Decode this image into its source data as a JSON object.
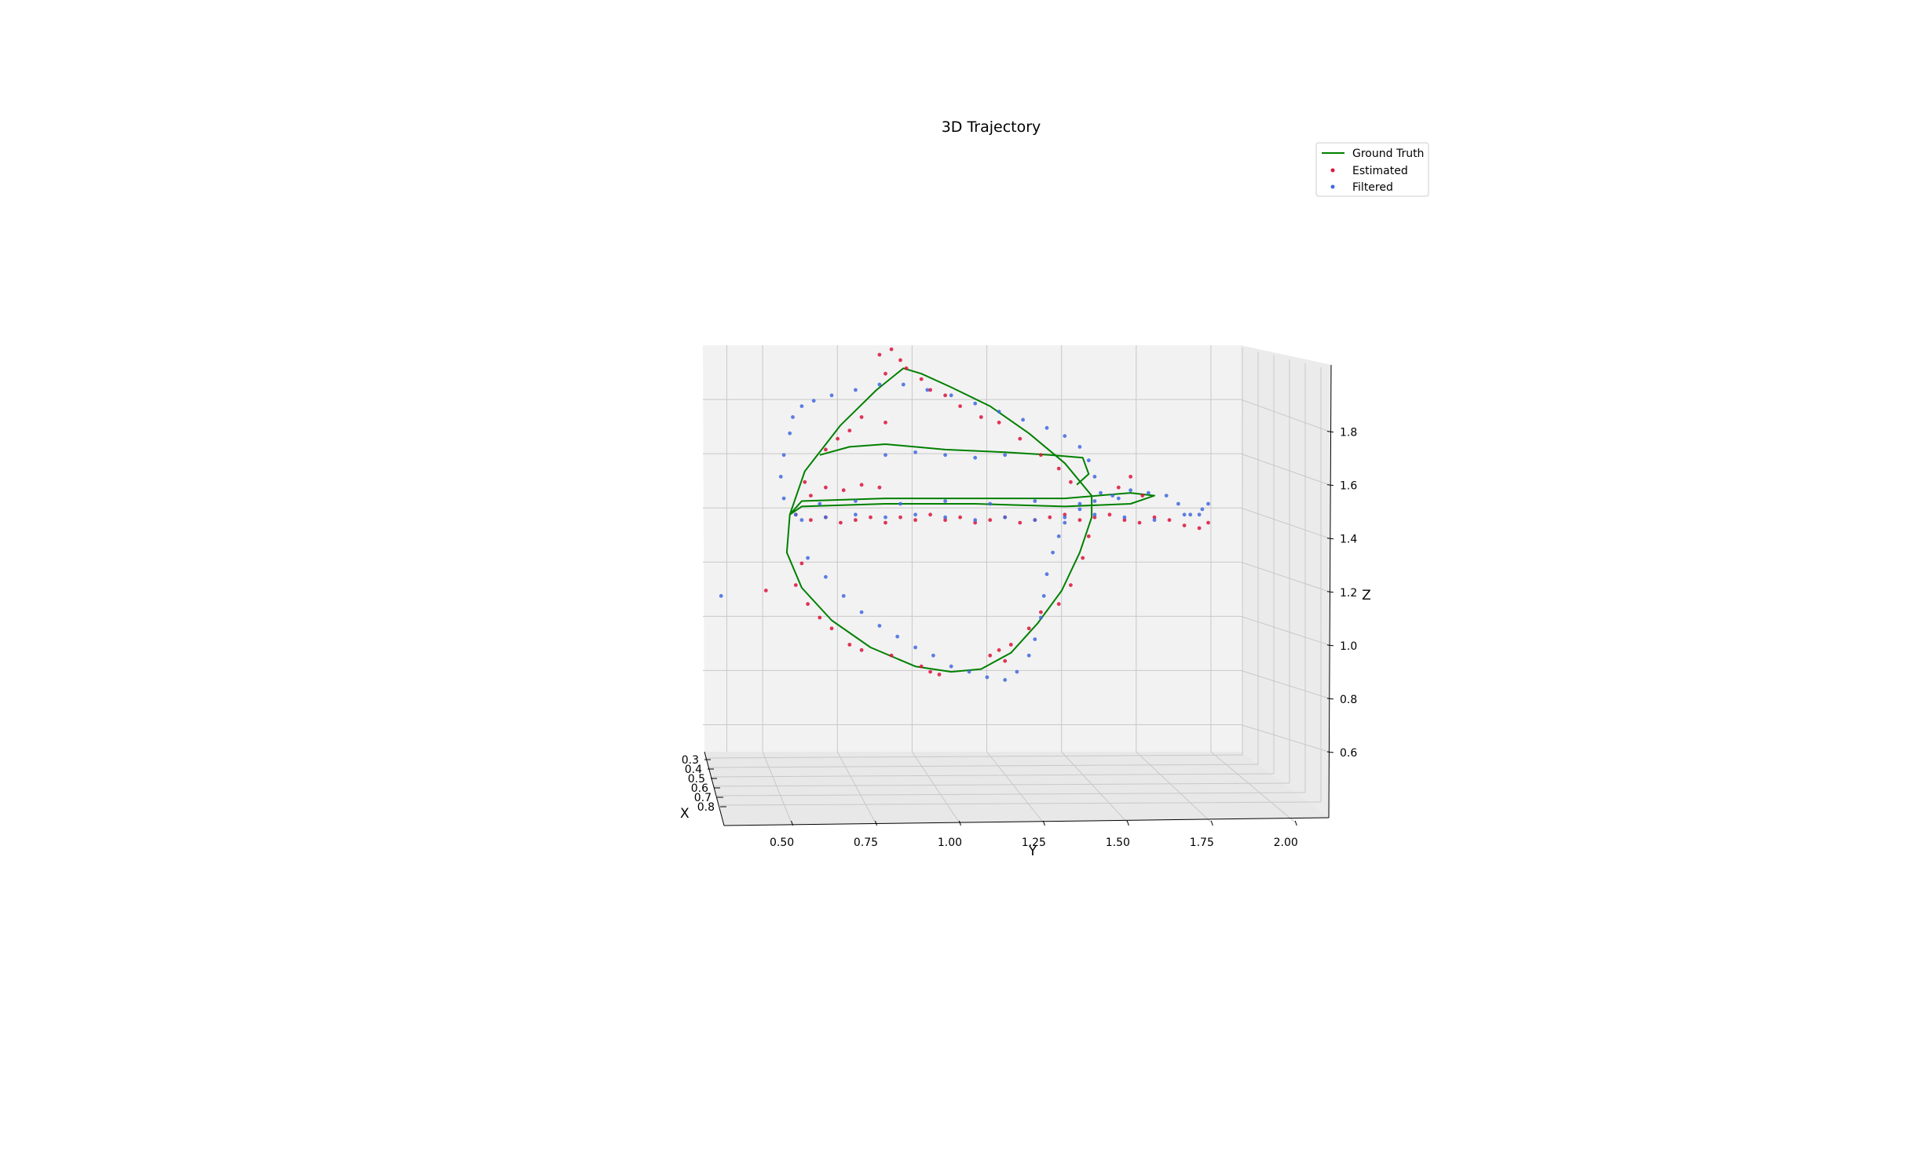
{
  "chart_data": {
    "type": "scatter",
    "projection": "3d",
    "title": "3D Trajectory",
    "xlabel": "X",
    "ylabel": "Y",
    "zlabel": "Z",
    "x_ticks": [
      "0.3",
      "0.4",
      "0.5",
      "0.6",
      "0.7",
      "0.8"
    ],
    "y_ticks": [
      "0.50",
      "0.75",
      "1.00",
      "1.25",
      "1.50",
      "1.75",
      "2.00"
    ],
    "z_ticks": [
      "0.6",
      "0.8",
      "1.0",
      "1.2",
      "1.4",
      "1.6",
      "1.8"
    ],
    "xlim": [
      0.25,
      0.85
    ],
    "ylim": [
      0.3,
      2.1
    ],
    "zlim": [
      0.5,
      2.0
    ],
    "grid": true,
    "legend": {
      "position": "top-right",
      "entries": [
        {
          "label": "Ground Truth",
          "kind": "line",
          "color": "#008000"
        },
        {
          "label": "Estimated",
          "kind": "marker",
          "color": "#dc143c"
        },
        {
          "label": "Filtered",
          "kind": "marker",
          "color": "#4169e1"
        }
      ]
    },
    "series": [
      {
        "name": "Ground Truth",
        "kind": "line",
        "color": "#008000",
        "points": [
          [
            0.5,
            0.58,
            1.38
          ],
          [
            0.5,
            0.63,
            1.54
          ],
          [
            0.5,
            0.75,
            1.71
          ],
          [
            0.5,
            0.87,
            1.84
          ],
          [
            0.5,
            0.96,
            1.92
          ],
          [
            0.5,
            1.02,
            1.9
          ],
          [
            0.5,
            1.12,
            1.85
          ],
          [
            0.5,
            1.25,
            1.78
          ],
          [
            0.5,
            1.38,
            1.68
          ],
          [
            0.5,
            1.5,
            1.57
          ],
          [
            0.5,
            1.59,
            1.45
          ],
          [
            0.5,
            1.59,
            1.37
          ],
          [
            0.5,
            1.55,
            1.24
          ],
          [
            0.5,
            1.49,
            1.1
          ],
          [
            0.5,
            1.41,
            0.98
          ],
          [
            0.5,
            1.32,
            0.87
          ],
          [
            0.5,
            1.22,
            0.81
          ],
          [
            0.5,
            1.12,
            0.8
          ],
          [
            0.5,
            1.0,
            0.82
          ],
          [
            0.5,
            0.85,
            0.89
          ],
          [
            0.5,
            0.72,
            0.99
          ],
          [
            0.5,
            0.62,
            1.11
          ],
          [
            0.5,
            0.57,
            1.24
          ],
          [
            0.5,
            0.58,
            1.38
          ],
          [
            0.5,
            0.62,
            1.43
          ],
          [
            0.5,
            0.9,
            1.44
          ],
          [
            0.5,
            1.2,
            1.44
          ],
          [
            0.5,
            1.5,
            1.44
          ],
          [
            0.5,
            1.72,
            1.46
          ],
          [
            0.5,
            1.8,
            1.45
          ],
          [
            0.5,
            1.72,
            1.42
          ],
          [
            0.5,
            1.5,
            1.41
          ],
          [
            0.5,
            1.2,
            1.42
          ],
          [
            0.5,
            0.9,
            1.42
          ],
          [
            0.5,
            0.62,
            1.41
          ],
          [
            0.5,
            0.58,
            1.38
          ]
        ]
      },
      {
        "name": "Ground Truth",
        "kind": "line",
        "color": "#008000",
        "points": [
          [
            0.5,
            0.68,
            1.6
          ],
          [
            0.5,
            0.78,
            1.63
          ],
          [
            0.5,
            0.9,
            1.64
          ],
          [
            0.5,
            1.1,
            1.62
          ],
          [
            0.5,
            1.3,
            1.61
          ],
          [
            0.5,
            1.45,
            1.6
          ],
          [
            0.5,
            1.56,
            1.59
          ],
          [
            0.5,
            1.58,
            1.53
          ],
          [
            0.5,
            1.54,
            1.49
          ]
        ]
      },
      {
        "name": "Estimated",
        "kind": "scatter",
        "color": "#dc143c",
        "points": [
          [
            0.5,
            0.88,
            1.97
          ],
          [
            0.5,
            0.92,
            1.99
          ],
          [
            0.5,
            0.95,
            1.95
          ],
          [
            0.5,
            0.9,
            1.9
          ],
          [
            0.5,
            0.97,
            1.92
          ],
          [
            0.5,
            1.02,
            1.88
          ],
          [
            0.5,
            1.05,
            1.84
          ],
          [
            0.5,
            1.1,
            1.82
          ],
          [
            0.5,
            0.82,
            1.74
          ],
          [
            0.5,
            0.9,
            1.72
          ],
          [
            0.5,
            0.78,
            1.69
          ],
          [
            0.5,
            0.74,
            1.66
          ],
          [
            0.5,
            0.7,
            1.62
          ],
          [
            0.5,
            1.15,
            1.78
          ],
          [
            0.5,
            1.22,
            1.74
          ],
          [
            0.5,
            1.28,
            1.72
          ],
          [
            0.5,
            1.35,
            1.66
          ],
          [
            0.5,
            1.42,
            1.6
          ],
          [
            0.5,
            1.48,
            1.55
          ],
          [
            0.5,
            1.52,
            1.5
          ],
          [
            0.5,
            0.63,
            1.5
          ],
          [
            0.5,
            0.65,
            1.45
          ],
          [
            0.5,
            0.7,
            1.48
          ],
          [
            0.5,
            0.76,
            1.47
          ],
          [
            0.5,
            0.82,
            1.49
          ],
          [
            0.5,
            0.88,
            1.48
          ],
          [
            0.5,
            0.6,
            1.38
          ],
          [
            0.5,
            0.65,
            1.36
          ],
          [
            0.5,
            0.7,
            1.37
          ],
          [
            0.5,
            0.75,
            1.35
          ],
          [
            0.5,
            0.8,
            1.36
          ],
          [
            0.5,
            0.85,
            1.37
          ],
          [
            0.5,
            0.9,
            1.35
          ],
          [
            0.5,
            0.95,
            1.37
          ],
          [
            0.5,
            1.0,
            1.36
          ],
          [
            0.5,
            1.05,
            1.38
          ],
          [
            0.5,
            1.1,
            1.36
          ],
          [
            0.5,
            1.15,
            1.37
          ],
          [
            0.5,
            1.2,
            1.35
          ],
          [
            0.5,
            1.25,
            1.36
          ],
          [
            0.5,
            1.3,
            1.37
          ],
          [
            0.5,
            1.35,
            1.35
          ],
          [
            0.5,
            1.4,
            1.36
          ],
          [
            0.5,
            1.45,
            1.37
          ],
          [
            0.5,
            1.5,
            1.38
          ],
          [
            0.5,
            1.55,
            1.36
          ],
          [
            0.5,
            1.6,
            1.37
          ],
          [
            0.5,
            1.65,
            1.38
          ],
          [
            0.5,
            1.7,
            1.36
          ],
          [
            0.5,
            1.75,
            1.35
          ],
          [
            0.5,
            1.8,
            1.37
          ],
          [
            0.5,
            1.85,
            1.36
          ],
          [
            0.5,
            1.9,
            1.34
          ],
          [
            0.5,
            1.95,
            1.33
          ],
          [
            0.5,
            1.98,
            1.35
          ],
          [
            0.5,
            1.68,
            1.48
          ],
          [
            0.5,
            1.72,
            1.52
          ],
          [
            0.5,
            1.76,
            1.45
          ],
          [
            0.5,
            1.58,
            1.3
          ],
          [
            0.5,
            1.56,
            1.22
          ],
          [
            0.5,
            1.52,
            1.12
          ],
          [
            0.5,
            1.48,
            1.05
          ],
          [
            0.5,
            0.62,
            1.2
          ],
          [
            0.5,
            0.6,
            1.12
          ],
          [
            0.5,
            0.64,
            1.05
          ],
          [
            0.5,
            0.68,
            1.0
          ],
          [
            0.5,
            0.72,
            0.96
          ],
          [
            0.5,
            0.78,
            0.9
          ],
          [
            0.5,
            0.82,
            0.88
          ],
          [
            0.5,
            0.92,
            0.86
          ],
          [
            0.5,
            1.02,
            0.82
          ],
          [
            0.5,
            1.05,
            0.8
          ],
          [
            0.5,
            1.08,
            0.79
          ],
          [
            0.5,
            1.25,
            0.86
          ],
          [
            0.5,
            1.28,
            0.88
          ],
          [
            0.5,
            1.3,
            0.84
          ],
          [
            0.5,
            1.32,
            0.9
          ],
          [
            0.5,
            1.38,
            0.96
          ],
          [
            0.5,
            1.42,
            1.02
          ],
          [
            0.5,
            0.5,
            1.1
          ]
        ]
      },
      {
        "name": "Filtered",
        "kind": "scatter",
        "color": "#4169e1",
        "points": [
          [
            0.5,
            0.58,
            1.68
          ],
          [
            0.5,
            0.59,
            1.74
          ],
          [
            0.5,
            0.62,
            1.78
          ],
          [
            0.5,
            0.66,
            1.8
          ],
          [
            0.5,
            0.72,
            1.82
          ],
          [
            0.5,
            0.8,
            1.84
          ],
          [
            0.5,
            0.88,
            1.86
          ],
          [
            0.5,
            0.96,
            1.86
          ],
          [
            0.5,
            1.04,
            1.84
          ],
          [
            0.5,
            1.12,
            1.82
          ],
          [
            0.5,
            1.2,
            1.79
          ],
          [
            0.5,
            1.28,
            1.76
          ],
          [
            0.5,
            1.36,
            1.73
          ],
          [
            0.5,
            1.44,
            1.7
          ],
          [
            0.5,
            1.5,
            1.67
          ],
          [
            0.5,
            1.55,
            1.63
          ],
          [
            0.5,
            1.58,
            1.58
          ],
          [
            0.5,
            1.6,
            1.52
          ],
          [
            0.5,
            1.62,
            1.46
          ],
          [
            0.5,
            0.56,
            1.6
          ],
          [
            0.5,
            0.55,
            1.52
          ],
          [
            0.5,
            0.56,
            1.44
          ],
          [
            0.5,
            0.6,
            1.38
          ],
          [
            0.5,
            0.62,
            1.36
          ],
          [
            0.5,
            0.7,
            1.37
          ],
          [
            0.5,
            0.8,
            1.38
          ],
          [
            0.5,
            0.9,
            1.37
          ],
          [
            0.5,
            1.0,
            1.38
          ],
          [
            0.5,
            1.1,
            1.37
          ],
          [
            0.5,
            1.2,
            1.36
          ],
          [
            0.5,
            1.3,
            1.37
          ],
          [
            0.5,
            1.4,
            1.36
          ],
          [
            0.5,
            1.5,
            1.37
          ],
          [
            0.5,
            1.6,
            1.38
          ],
          [
            0.5,
            1.7,
            1.37
          ],
          [
            0.5,
            1.8,
            1.36
          ],
          [
            0.5,
            1.9,
            1.38
          ],
          [
            0.5,
            1.96,
            1.4
          ],
          [
            0.5,
            1.98,
            1.42
          ],
          [
            0.5,
            1.95,
            1.38
          ],
          [
            0.5,
            0.68,
            1.42
          ],
          [
            0.5,
            0.8,
            1.43
          ],
          [
            0.5,
            0.95,
            1.42
          ],
          [
            0.5,
            1.1,
            1.43
          ],
          [
            0.5,
            1.25,
            1.42
          ],
          [
            0.5,
            1.4,
            1.43
          ],
          [
            0.5,
            1.55,
            1.42
          ],
          [
            0.5,
            1.68,
            1.44
          ],
          [
            0.5,
            0.9,
            1.6
          ],
          [
            0.5,
            1.0,
            1.61
          ],
          [
            0.5,
            1.1,
            1.6
          ],
          [
            0.5,
            1.2,
            1.59
          ],
          [
            0.5,
            1.3,
            1.6
          ],
          [
            0.5,
            0.64,
            1.22
          ],
          [
            0.5,
            0.7,
            1.15
          ],
          [
            0.5,
            0.76,
            1.08
          ],
          [
            0.5,
            0.82,
            1.02
          ],
          [
            0.5,
            0.88,
            0.97
          ],
          [
            0.5,
            0.94,
            0.93
          ],
          [
            0.5,
            1.0,
            0.89
          ],
          [
            0.5,
            1.06,
            0.86
          ],
          [
            0.5,
            1.12,
            0.82
          ],
          [
            0.5,
            1.18,
            0.8
          ],
          [
            0.5,
            1.24,
            0.78
          ],
          [
            0.5,
            1.3,
            0.77
          ],
          [
            0.5,
            1.34,
            0.8
          ],
          [
            0.5,
            1.38,
            0.86
          ],
          [
            0.5,
            1.4,
            0.92
          ],
          [
            0.5,
            1.42,
            1.0
          ],
          [
            0.5,
            1.43,
            1.08
          ],
          [
            0.5,
            1.44,
            1.16
          ],
          [
            0.5,
            1.46,
            1.24
          ],
          [
            0.5,
            1.48,
            1.3
          ],
          [
            0.5,
            1.5,
            1.35
          ],
          [
            0.5,
            1.55,
            1.4
          ],
          [
            0.5,
            1.6,
            1.43
          ],
          [
            0.5,
            1.66,
            1.45
          ],
          [
            0.5,
            1.72,
            1.47
          ],
          [
            0.5,
            1.78,
            1.46
          ],
          [
            0.5,
            1.84,
            1.45
          ],
          [
            0.5,
            1.88,
            1.42
          ],
          [
            0.5,
            1.92,
            1.38
          ],
          [
            0.5,
            0.35,
            1.08
          ]
        ]
      }
    ]
  }
}
